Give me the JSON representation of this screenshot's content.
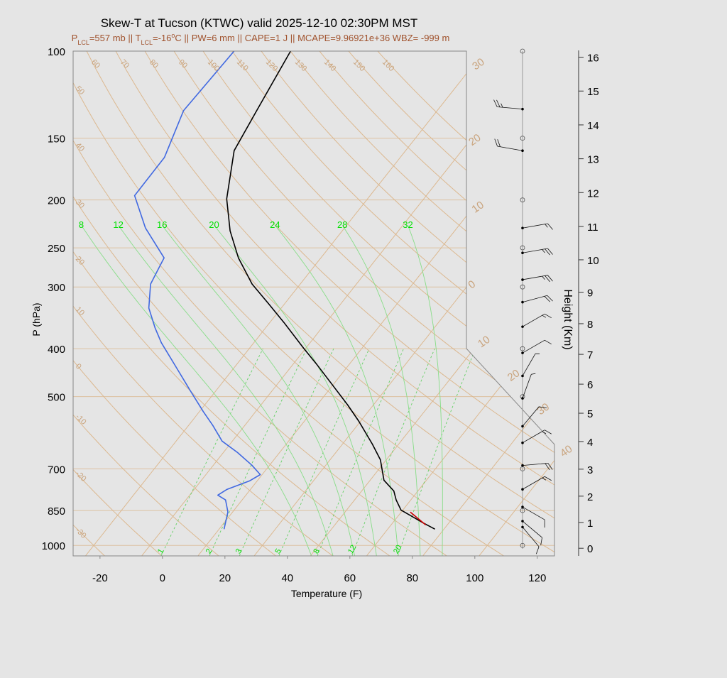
{
  "chart_data": {
    "type": "skewt",
    "title": "Skew-T at Tucson (KTWC) valid 2025-12-10 02:30PM MST",
    "subtitle": [
      {
        "text": "P"
      },
      {
        "text": "LCL",
        "shift": "sub"
      },
      {
        "text": "=557 mb || T"
      },
      {
        "text": "LCL",
        "shift": "sub"
      },
      {
        "text": "=-16"
      },
      {
        "text": "o",
        "shift": "super"
      },
      {
        "text": "C || PW=6 mm || CAPE=1 J || MCAPE=9.96921e+36 WBZ= -999 m"
      }
    ],
    "x_label": "Temperature (F)",
    "y_label": "P (hPa)",
    "y2_label": "Height (Km)",
    "xlim": [
      -28.6,
      125.5
    ],
    "xticks": [
      -20,
      0,
      20,
      40,
      60,
      80,
      100,
      120
    ],
    "ylim": [
      1050,
      100
    ],
    "yscale": "log",
    "yticks": [
      100,
      150,
      200,
      250,
      300,
      400,
      500,
      700,
      850,
      1000
    ],
    "y2lim": [
      -0.3,
      16.2
    ],
    "y2scale": "standard-atmosphere",
    "y2ticks": [
      0,
      1,
      2,
      3,
      4,
      5,
      6,
      7,
      8,
      9,
      10,
      11,
      12,
      13,
      14,
      15,
      16
    ],
    "profiles": [
      {
        "color": "#000000",
        "pressure": [
          927,
          900,
          870,
          848,
          809,
          776,
          738,
          671,
          624,
          561,
          520,
          476,
          431,
          399,
          354,
          326,
          296,
          262,
          231,
          199,
          159,
          131,
          100
        ],
        "values": [
          83.1,
          77.7,
          71.8,
          67.4,
          63.3,
          60.3,
          54.4,
          48.1,
          41.6,
          31.5,
          23.8,
          14.4,
          3.8,
          -4.7,
          -17.5,
          -26.6,
          -37.4,
          -48.4,
          -57.9,
          -67.1,
          -76.9,
          -79.9,
          -84.0
        ]
      },
      {
        "color": "#4169e1",
        "pressure": [
          927,
          856,
          809,
          791,
          770,
          740,
          719,
          688,
          649,
          615,
          572,
          536,
          485,
          435,
          389,
          363,
          331,
          296,
          262,
          228,
          196,
          164,
          132,
          100
        ],
        "values": [
          15.6,
          12.5,
          8.7,
          5.0,
          6.5,
          11.6,
          13.4,
          8.3,
          0.6,
          -7.3,
          -14.2,
          -20.8,
          -30.5,
          -40.9,
          -51.6,
          -57.4,
          -64.4,
          -69.9,
          -72.2,
          -85.7,
          -97.4,
          -97.5,
          -103.2,
          -102.1
        ]
      },
      {
        "color": "#cc0000",
        "pressure": [
          909,
          856
        ],
        "values": [
          79.1,
          70.9
        ]
      }
    ],
    "dry_adiabats": [
      -30,
      -20,
      -10,
      0,
      10,
      20,
      30,
      40,
      50,
      60,
      70,
      80,
      90,
      100,
      110,
      120,
      130,
      140,
      150,
      160
    ],
    "isotherms": [
      {
        "value": -30,
        "label": "30"
      },
      {
        "value": -20,
        "label": "20"
      },
      {
        "value": -10,
        "label": "10"
      },
      0,
      10,
      20,
      30,
      40
    ],
    "moist_adiabats": [
      8,
      12,
      16,
      20,
      24,
      28,
      32
    ],
    "mixing_ratios": [
      1,
      2,
      3,
      5,
      8,
      12,
      20
    ],
    "wind": {
      "pressure": [
        131,
        159,
        228,
        256,
        290,
        322,
        361,
        408,
        454,
        504,
        574,
        620,
        689,
        770,
        836,
        893,
        918
      ],
      "direction": [
        275,
        280,
        80,
        80,
        80,
        75,
        60,
        60,
        30,
        20,
        40,
        60,
        85,
        60,
        120,
        130,
        140
      ],
      "speed": [
        25,
        20,
        15,
        25,
        25,
        20,
        15,
        10,
        5,
        5,
        10,
        15,
        20,
        15,
        10,
        10,
        10
      ]
    }
  }
}
